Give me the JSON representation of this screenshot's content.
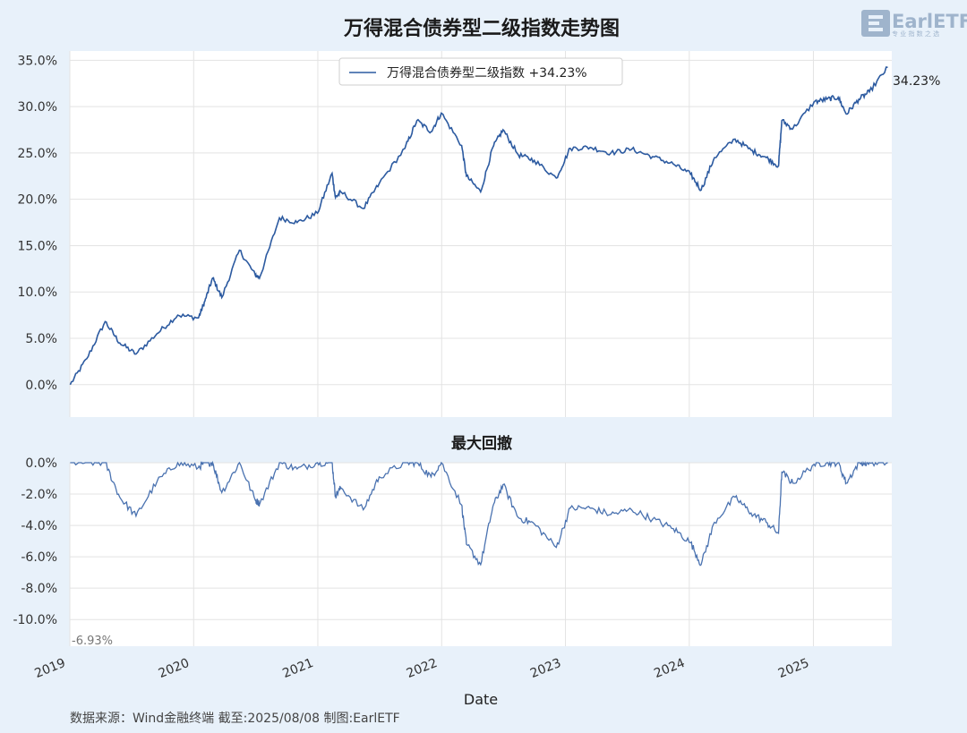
{
  "chart_data": [
    {
      "type": "line",
      "title": "万得混合债券型二级指数走势图",
      "series": [
        {
          "name": "万得混合债券型二级指数",
          "legend_label": "万得混合债券型二级指数  +34.23%",
          "end_label": "34.23%",
          "x": [
            "2019-01-02",
            "2019-02-20",
            "2019-04-15",
            "2019-05-28",
            "2019-07-15",
            "2019-09-15",
            "2019-11-15",
            "2020-01-15",
            "2020-02-03",
            "2020-02-26",
            "2020-03-24",
            "2020-05-15",
            "2020-07-01",
            "2020-07-14",
            "2020-09-10",
            "2020-11-01",
            "2020-12-31",
            "2021-02-12",
            "2021-02-22",
            "2021-03-10",
            "2021-05-15",
            "2021-07-01",
            "2021-09-15",
            "2021-10-20",
            "2021-12-01",
            "2021-12-31",
            "2022-03-01",
            "2022-03-15",
            "2022-04-26",
            "2022-06-01",
            "2022-07-01",
            "2022-08-15",
            "2022-10-01",
            "2022-12-05",
            "2023-01-15",
            "2023-03-15",
            "2023-05-15",
            "2023-07-15",
            "2023-09-15",
            "2023-11-15",
            "2024-01-05",
            "2024-02-05",
            "2024-03-15",
            "2024-05-15",
            "2024-07-01",
            "2024-08-15",
            "2024-09-20",
            "2024-09-30",
            "2024-11-01",
            "2025-01-03",
            "2025-02-10",
            "2025-03-15",
            "2025-04-08",
            "2025-05-15",
            "2025-06-15",
            "2025-08-08"
          ],
          "values": [
            0.0,
            2.8,
            6.8,
            4.5,
            3.3,
            5.5,
            7.5,
            7.2,
            9.0,
            11.5,
            9.4,
            14.5,
            11.8,
            11.6,
            18.0,
            17.5,
            18.5,
            22.8,
            20.2,
            20.8,
            19.0,
            21.7,
            25.5,
            28.5,
            27.3,
            29.3,
            25.8,
            22.5,
            20.8,
            25.6,
            27.5,
            24.8,
            24.2,
            22.3,
            25.5,
            25.6,
            25.0,
            25.4,
            24.6,
            23.8,
            22.7,
            21.0,
            24.5,
            26.5,
            25.3,
            24.5,
            23.6,
            28.5,
            27.6,
            30.5,
            30.8,
            31.0,
            29.2,
            30.8,
            31.6,
            34.23
          ]
        }
      ],
      "ylim": [
        -3.5,
        36.0
      ],
      "yticks": [
        "0.0%",
        "5.0%",
        "10.0%",
        "15.0%",
        "20.0%",
        "25.0%",
        "30.0%",
        "35.0%"
      ],
      "grid": true,
      "legend": "top-center"
    },
    {
      "type": "area",
      "title": "最大回撤",
      "series": [
        {
          "x": [
            "2019-01-02",
            "2019-02-20",
            "2019-04-15",
            "2019-05-28",
            "2019-07-15",
            "2019-09-15",
            "2019-11-15",
            "2020-01-15",
            "2020-02-03",
            "2020-02-26",
            "2020-03-24",
            "2020-05-15",
            "2020-07-01",
            "2020-07-14",
            "2020-09-10",
            "2020-11-01",
            "2020-12-31",
            "2021-02-12",
            "2021-02-22",
            "2021-03-10",
            "2021-05-15",
            "2021-07-01",
            "2021-09-15",
            "2021-10-20",
            "2021-12-01",
            "2021-12-31",
            "2022-03-01",
            "2022-03-15",
            "2022-04-26",
            "2022-06-01",
            "2022-07-01",
            "2022-08-15",
            "2022-10-01",
            "2022-12-05",
            "2023-01-15",
            "2023-03-15",
            "2023-05-15",
            "2023-07-15",
            "2023-09-15",
            "2023-11-15",
            "2024-01-05",
            "2024-02-05",
            "2024-03-15",
            "2024-05-15",
            "2024-07-01",
            "2024-08-15",
            "2024-09-20",
            "2024-09-30",
            "2024-11-01",
            "2025-01-03",
            "2025-02-10",
            "2025-03-15",
            "2025-04-08",
            "2025-05-15",
            "2025-06-15",
            "2025-08-08"
          ],
          "values": [
            0.0,
            0.0,
            0.0,
            -2.2,
            -3.4,
            -1.2,
            0.0,
            -0.3,
            0.0,
            0.0,
            -1.9,
            0.0,
            -2.4,
            -2.6,
            0.0,
            -0.4,
            0.0,
            0.0,
            -2.1,
            -1.6,
            -3.0,
            -0.9,
            0.0,
            0.0,
            -0.9,
            0.0,
            -2.7,
            -5.2,
            -6.5,
            -2.8,
            -1.4,
            -3.5,
            -3.9,
            -5.4,
            -2.9,
            -2.9,
            -3.3,
            -3.0,
            -3.6,
            -4.2,
            -5.1,
            -6.5,
            -3.8,
            -2.2,
            -3.2,
            -3.8,
            -4.5,
            -0.6,
            -1.3,
            -0.1,
            0.0,
            0.0,
            -1.3,
            0.0,
            0.0,
            0.0
          ]
        }
      ],
      "min_label": "-6.93%",
      "ylim": [
        -11.7,
        0.0
      ],
      "yticks": [
        "0.0%",
        "-2.0%",
        "-4.0%",
        "-6.0%",
        "-8.0%",
        "-10.0%"
      ],
      "xticks": [
        "2019",
        "2020",
        "2021",
        "2022",
        "2023",
        "2024",
        "2025"
      ],
      "xlim": [
        "2019-01-01",
        "2025-08-20"
      ],
      "xlabel": "Date",
      "grid": true
    }
  ],
  "colors": {
    "line": "#2c5aa0",
    "drawdown": "#4a72b0",
    "background": "#e8f1fa",
    "plot": "#ffffff",
    "grid": "#e3e3e3"
  },
  "source_note": "数据来源：Wind金融终端 截至:2025/08/08 制图:EarlETF",
  "logo": {
    "text": "EarlETF",
    "sub": "专 业 指 数 之 选"
  }
}
